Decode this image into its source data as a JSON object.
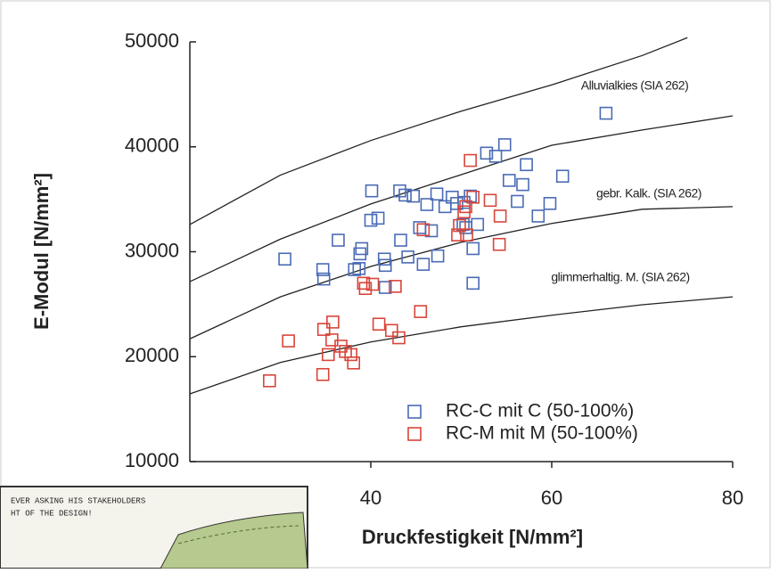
{
  "chart_data": {
    "type": "scatter",
    "x_label": "Druckfestigkeit [N/mm²]",
    "y_label": "E-Modul [N/mm²]",
    "xlim": [
      20,
      80
    ],
    "xticks": [
      40,
      60,
      80
    ],
    "ylim": [
      10000,
      50000
    ],
    "yticks": [
      10000,
      20000,
      30000,
      40000,
      50000
    ],
    "legend": "lower right",
    "series": [
      {
        "name": "RC-C mit C (50-100%)",
        "color": "#4a6bb5",
        "x": [
          30.5,
          34.7,
          34.8,
          36.4,
          38.2,
          38.8,
          39.0,
          40.1,
          40.0,
          40.8,
          41.5,
          41.6,
          41.6,
          43.3,
          43.2,
          43.8,
          44.1,
          44.7,
          45.4,
          45.8,
          46.2,
          46.7,
          47.3,
          47.4,
          48.2,
          49.0,
          49.5,
          50.2,
          50.5,
          51.0,
          51.3,
          51.3,
          51.8,
          52.8,
          53.8,
          54.8,
          55.3,
          56.2,
          56.8,
          57.2,
          58.5,
          59.8,
          61.2,
          66.0,
          50.3,
          38.7
        ],
        "values": [
          29300,
          28300,
          27400,
          31100,
          28300,
          29800,
          30300,
          35800,
          33000,
          33200,
          29300,
          26600,
          28700,
          31100,
          35800,
          35400,
          29500,
          35300,
          32300,
          28800,
          34500,
          32000,
          35500,
          29600,
          34300,
          35200,
          34600,
          32600,
          32300,
          35300,
          30300,
          27000,
          32600,
          39400,
          39100,
          40200,
          36800,
          34800,
          36400,
          38300,
          33400,
          34600,
          37200,
          43200,
          34700,
          28400
        ]
      },
      {
        "name": "RC-M mit M (50-100%)",
        "color": "#d8453a",
        "x": [
          28.8,
          30.9,
          34.7,
          34.8,
          35.3,
          35.8,
          35.7,
          36.7,
          37.2,
          37.8,
          38.1,
          39.2,
          39.4,
          40.2,
          40.9,
          42.3,
          42.7,
          43.1,
          45.5,
          45.8,
          49.6,
          49.8,
          50.3,
          50.6,
          51.0,
          51.3,
          53.2,
          54.2,
          54.3,
          50.5
        ],
        "values": [
          17700,
          21500,
          18300,
          22600,
          20200,
          23300,
          21600,
          21000,
          20500,
          20200,
          19400,
          27000,
          26500,
          26900,
          23100,
          22500,
          26700,
          21800,
          24300,
          32100,
          31600,
          32500,
          33800,
          31600,
          38700,
          35200,
          34900,
          30700,
          33400,
          34300
        ]
      }
    ],
    "curves": [
      {
        "label": "Alluvialkies (SIA 262)",
        "x": [
          20,
          30,
          40,
          50,
          60,
          70,
          75
        ],
        "values": [
          32600,
          37300,
          40600,
          43400,
          45900,
          48700,
          50400
        ]
      },
      {
        "label": "gebr. Kalk. (SIA 262)",
        "x": [
          20,
          30,
          40,
          50,
          60,
          70,
          80
        ],
        "values": [
          27150,
          31200,
          34550,
          37350,
          40150,
          41600,
          42950
        ]
      },
      {
        "label": "glimmerhaltig. M. (SIA 262)",
        "x": [
          20,
          30,
          40,
          50,
          60,
          70,
          80
        ],
        "values": [
          21700,
          25700,
          28600,
          30900,
          32700,
          34050,
          34300
        ]
      },
      {
        "x": [
          20,
          30,
          40,
          50,
          60,
          70,
          80
        ],
        "values": [
          16450,
          19450,
          21400,
          22850,
          23950,
          24950,
          25700
        ]
      }
    ]
  },
  "overlay": {
    "lines": [
      "EVER ASKING HIS STAKEHOLDERS",
      "HT OF THE DESIGN!"
    ]
  }
}
